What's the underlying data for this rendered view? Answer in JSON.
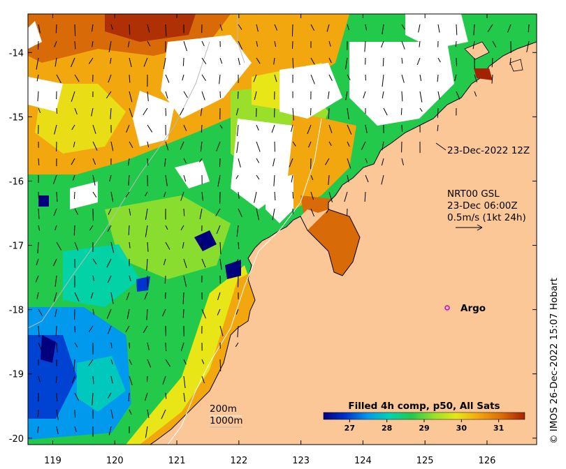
{
  "map": {
    "lon_range": [
      118.6,
      126.8
    ],
    "lat_range": [
      -20.1,
      -13.4
    ],
    "lon_ticks": [
      "119",
      "120",
      "121",
      "122",
      "123",
      "124",
      "125",
      "126"
    ],
    "lat_ticks": [
      "-14",
      "-15",
      "-16",
      "-17",
      "-18",
      "-19",
      "-20"
    ]
  },
  "annotations": {
    "timestamp": "23-Dec-2022 12Z",
    "current_source": "NRT00 GSL",
    "current_time": "23-Dec 06:00Z",
    "vector_scale": "0.5m/s (1kt 24h)",
    "argo_label": "Argo",
    "isobath_200": "200m",
    "isobath_1000": "1000m",
    "credit": "© IMOS 26-Dec-2022 15:07 Hobart"
  },
  "colorbar": {
    "title": "Filled 4h comp, p50, All Sats",
    "tick_labels": [
      "27",
      "28",
      "29",
      "30",
      "31"
    ],
    "range": [
      26.3,
      31.7
    ],
    "colors": [
      "#00007f",
      "#0033cc",
      "#0099ee",
      "#00d3b0",
      "#22c94a",
      "#9ae02a",
      "#e8e616",
      "#f2a70e",
      "#d96a08",
      "#a32204"
    ]
  },
  "colors": {
    "land": "#fcc797",
    "argo": "#cc00cc",
    "cloud": "#ffffff"
  }
}
